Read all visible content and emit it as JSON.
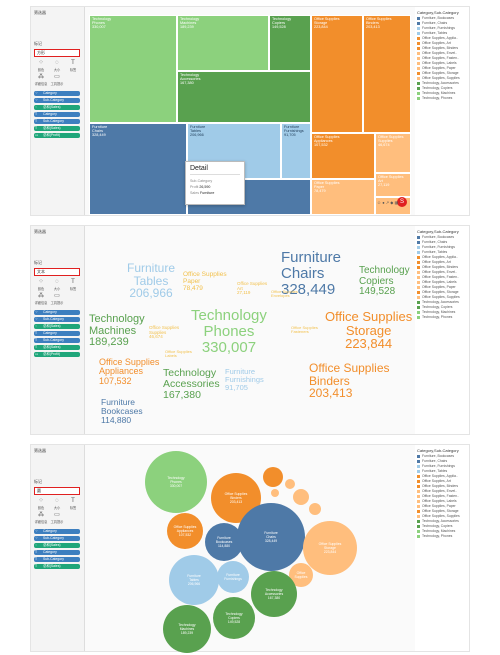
{
  "sidebar": {
    "filter_label": "筛选器",
    "marks_label": "标记",
    "buttons": [
      {
        "label": "颜色",
        "icon": "color-icon"
      },
      {
        "label": "大小",
        "icon": "size-icon"
      },
      {
        "label": "标签",
        "icon": "label-icon"
      },
      {
        "label": "详细信息",
        "icon": "detail-icon"
      },
      {
        "label": "工具提示",
        "icon": "tooltip-icon"
      }
    ],
    "pills": [
      "Category",
      "Sub-Category",
      "总和(Sales)",
      "Category",
      "Sub-Category",
      "总和(Sales)",
      "总和(Profit)"
    ]
  },
  "colors": {
    "furniture": "#4e79a7",
    "furniture_light": "#a0cbe8",
    "office": "#f28e2b",
    "office_light": "#ffbe7d",
    "technology": "#59a14f",
    "technology_light": "#8cd17d",
    "pill_blue": "#3d7fbf",
    "pill_green": "#1fa67a",
    "red": "#e02020"
  },
  "panels": [
    {
      "mark_type": "方形",
      "legend_title": "Category,Sub-Category",
      "legend_items": [
        {
          "label": "Furniture, Bookcases",
          "color": "#4e79a7"
        },
        {
          "label": "Furniture, Chairs",
          "color": "#4e79a7"
        },
        {
          "label": "Furniture, Furnishings",
          "color": "#a0cbe8"
        },
        {
          "label": "Furniture, Tables",
          "color": "#a0cbe8"
        },
        {
          "label": "Office Supplies, Applia..",
          "color": "#f28e2b"
        },
        {
          "label": "Office Supplies, Art",
          "color": "#f28e2b"
        },
        {
          "label": "Office Supplies, Binders",
          "color": "#f28e2b"
        },
        {
          "label": "Office Supplies, Envel..",
          "color": "#ffbe7d"
        },
        {
          "label": "Office Supplies, Fasten..",
          "color": "#ffbe7d"
        },
        {
          "label": "Office Supplies, Labels",
          "color": "#ffbe7d"
        },
        {
          "label": "Office Supplies, Paper",
          "color": "#ffbe7d"
        },
        {
          "label": "Office Supplies, Storage",
          "color": "#f28e2b"
        },
        {
          "label": "Office Supplies, Supplies",
          "color": "#ffbe7d"
        },
        {
          "label": "Technology, Accessories",
          "color": "#59a14f"
        },
        {
          "label": "Technology, Copiers",
          "color": "#59a14f"
        },
        {
          "label": "Technology, Machines",
          "color": "#8cd17d"
        },
        {
          "label": "Technology, Phones",
          "color": "#8cd17d"
        }
      ],
      "cells": [
        {
          "name": "Technology\nPhones",
          "value": "330,007",
          "color": "#59a14f"
        },
        {
          "name": "Technology\nMachines",
          "value": "189,239",
          "color": "#59a14f"
        },
        {
          "name": "Technology\nCopiers",
          "value": "149,528",
          "color": "#59a14f"
        },
        {
          "name": "Technology\nAccessories",
          "value": "167,380",
          "color": "#59a14f"
        },
        {
          "name": "Furniture\nChairs",
          "value": "328,449",
          "color": "#4e79a7"
        },
        {
          "name": "Furniture\nTables",
          "value": "206,966",
          "color": "#4e79a7"
        },
        {
          "name": "Furniture\nFurnishings",
          "value": "91,705",
          "color": "#4e79a7"
        },
        {
          "name": "Furniture\nBookcases",
          "value": "",
          "color": "#4e79a7"
        },
        {
          "name": "Office Supplies\nStorage",
          "value": "223,844",
          "color": "#f28e2b"
        },
        {
          "name": "Office Supplies\nBinders",
          "value": "203,413",
          "color": "#f28e2b"
        },
        {
          "name": "Office Supplies\nAppliances",
          "value": "107,532",
          "color": "#f28e2b"
        },
        {
          "name": "Office Supplies\nPaper",
          "value": "78,479",
          "color": "#f28e2b"
        },
        {
          "name": "Office Supplies\nSupplies",
          "value": "46,674",
          "color": "#f28e2b"
        },
        {
          "name": "Office Supplies\nArt",
          "value": "27,119",
          "color": "#f28e2b"
        }
      ],
      "tooltip": {
        "title": "Detail",
        "rows": [
          {
            "label": "Sub-Category",
            "value": ""
          },
          {
            "label": "Profit",
            "value": "26,590"
          },
          {
            "label": "Sales",
            "value": "Furniture"
          }
        ]
      }
    },
    {
      "mark_type": "文本",
      "legend_title": "Category,Sub-Category",
      "legend_items": [
        {
          "label": "Furniture, Bookcases",
          "color": "#4e79a7"
        },
        {
          "label": "Furniture, Chairs",
          "color": "#4e79a7"
        },
        {
          "label": "Furniture, Furnishings",
          "color": "#a0cbe8"
        },
        {
          "label": "Furniture, Tables",
          "color": "#a0cbe8"
        },
        {
          "label": "Office Supplies, Applia..",
          "color": "#f28e2b"
        },
        {
          "label": "Office Supplies, Art",
          "color": "#f28e2b"
        },
        {
          "label": "Office Supplies, Binders",
          "color": "#f28e2b"
        },
        {
          "label": "Office Supplies, Envel..",
          "color": "#ffbe7d"
        },
        {
          "label": "Office Supplies, Fasten..",
          "color": "#ffbe7d"
        },
        {
          "label": "Office Supplies, Labels",
          "color": "#ffbe7d"
        },
        {
          "label": "Office Supplies, Paper",
          "color": "#ffbe7d"
        },
        {
          "label": "Office Supplies, Storage",
          "color": "#f28e2b"
        },
        {
          "label": "Office Supplies, Supplies",
          "color": "#ffbe7d"
        },
        {
          "label": "Technology, Accessories",
          "color": "#59a14f"
        },
        {
          "label": "Technology, Copiers",
          "color": "#59a14f"
        },
        {
          "label": "Technology, Machines",
          "color": "#8cd17d"
        },
        {
          "label": "Technology, Phones",
          "color": "#8cd17d"
        }
      ],
      "words": [
        {
          "text": "Furniture\nTables\n206,966",
          "color": "#a0cbe8"
        },
        {
          "text": "Office Supplies\nPaper\n78,479",
          "color": "#f2c14e"
        },
        {
          "text": "Office Supplies\nArt\n27,119",
          "color": "#f2c14e"
        },
        {
          "text": "Furniture\nChairs\n328,449",
          "color": "#4e79a7"
        },
        {
          "text": "Technology\nCopiers\n149,528",
          "color": "#59a14f"
        },
        {
          "text": "Technology\nMachines\n189,239",
          "color": "#59a14f"
        },
        {
          "text": "Technology\nPhones\n330,007",
          "color": "#8cd17d"
        },
        {
          "text": "Office Supplies\nStorage\n223,844",
          "color": "#f28e2b"
        },
        {
          "text": "Office Supplies\nAppliances\n107,532",
          "color": "#f28e2b"
        },
        {
          "text": "Technology\nAccessories\n167,380",
          "color": "#59a14f"
        },
        {
          "text": "Furniture\nFurnishings\n91,705",
          "color": "#a0cbe8"
        },
        {
          "text": "Office Supplies\nBinders\n203,413",
          "color": "#f28e2b"
        },
        {
          "text": "Furniture\nBookcases\n114,880",
          "color": "#4e79a7"
        },
        {
          "text": "Office Supplies\nSupplies\n46,674",
          "color": "#f2c14e"
        },
        {
          "text": "Office Supplies\nLabels",
          "color": "#f2c14e"
        },
        {
          "text": "Office Supplies\nFasteners",
          "color": "#f2c14e"
        },
        {
          "text": "Office Supplies\nEnvelopes",
          "color": "#f2c14e"
        }
      ]
    },
    {
      "mark_type": "圆",
      "legend_title": "Category,Sub-Category",
      "legend_items": [
        {
          "label": "Furniture, Bookcases",
          "color": "#4e79a7"
        },
        {
          "label": "Furniture, Chairs",
          "color": "#4e79a7"
        },
        {
          "label": "Furniture, Furnishings",
          "color": "#a0cbe8"
        },
        {
          "label": "Furniture, Tables",
          "color": "#a0cbe8"
        },
        {
          "label": "Office Supplies, Applia..",
          "color": "#f28e2b"
        },
        {
          "label": "Office Supplies, Art",
          "color": "#f28e2b"
        },
        {
          "label": "Office Supplies, Binders",
          "color": "#f28e2b"
        },
        {
          "label": "Office Supplies, Envel..",
          "color": "#ffbe7d"
        },
        {
          "label": "Office Supplies, Fasten..",
          "color": "#ffbe7d"
        },
        {
          "label": "Office Supplies, Labels",
          "color": "#ffbe7d"
        },
        {
          "label": "Office Supplies, Paper",
          "color": "#ffbe7d"
        },
        {
          "label": "Office Supplies, Storage",
          "color": "#f28e2b"
        },
        {
          "label": "Office Supplies, Supplies",
          "color": "#ffbe7d"
        },
        {
          "label": "Technology, Accessories",
          "color": "#59a14f"
        },
        {
          "label": "Technology, Copiers",
          "color": "#59a14f"
        },
        {
          "label": "Technology, Machines",
          "color": "#8cd17d"
        },
        {
          "label": "Technology, Phones",
          "color": "#8cd17d"
        }
      ],
      "bubbles": [
        {
          "text": "Technology\nPhones\n330,007",
          "color": "#8cd17d"
        },
        {
          "text": "Office Supplies\nBinders\n203,413",
          "color": "#f28e2b"
        },
        {
          "text": "Office Supplies\nAppliances\n107,532",
          "color": "#f28e2b"
        },
        {
          "text": "Furniture\nBookcases\n114,880",
          "color": "#4e79a7"
        },
        {
          "text": "Furniture\nChairs\n328,449",
          "color": "#4e79a7"
        },
        {
          "text": "Office Supplies\nStorage\n223,844",
          "color": "#ffbe7d"
        },
        {
          "text": "Furniture\nTables\n206,966",
          "color": "#a0cbe8"
        },
        {
          "text": "Furniture\nFurnishings",
          "color": "#a0cbe8"
        },
        {
          "text": "Office\nSupplies",
          "color": "#ffbe7d"
        },
        {
          "text": "Technology\nAccessories\n167,380",
          "color": "#59a14f"
        },
        {
          "text": "Technology\nCopiers\n149,528",
          "color": "#59a14f"
        },
        {
          "text": "Technology\nMachines\n189,239",
          "color": "#59a14f"
        },
        {
          "text": "",
          "color": "#f28e2b"
        },
        {
          "text": "",
          "color": "#ffbe7d"
        },
        {
          "text": "",
          "color": "#ffbe7d"
        },
        {
          "text": "",
          "color": "#ffbe7d"
        },
        {
          "text": "",
          "color": "#ffbe7d"
        }
      ]
    }
  ]
}
